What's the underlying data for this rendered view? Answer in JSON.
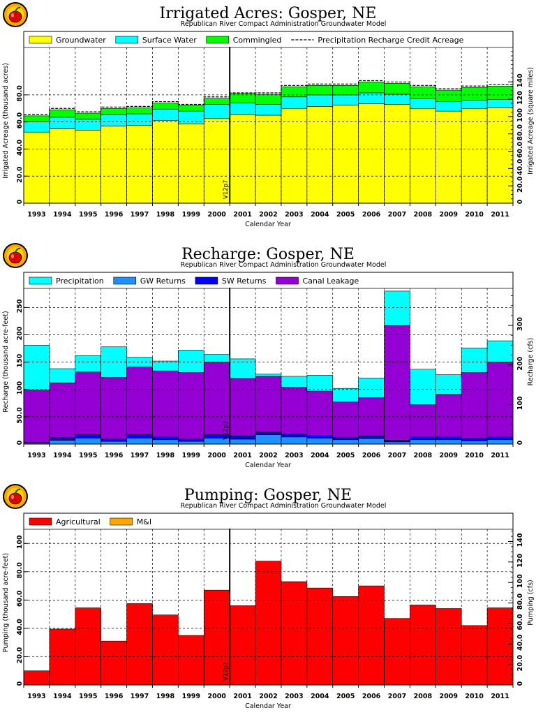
{
  "colors": {
    "groundwater": "#ffff00",
    "surface_water": "#00ffff",
    "commingled": "#00ff00",
    "precipitation": "#00ffff",
    "gw_returns": "#1e90ff",
    "sw_returns": "#0000ff",
    "canal_leakage": "#9400d3",
    "agricultural": "#ff0000",
    "mi": "#ffa500"
  },
  "chart_data": [
    {
      "type": "bar",
      "stacked": true,
      "title": "Irrigated  Acres:  Gosper,  NE",
      "subtitle": "Republican  River  Compact  Administration  Groundwater  Model",
      "xlabel": "Calendar  Year",
      "ylabel": "Irrigated  Acreage  (thousand  acres)",
      "ylabel_right": "Irrigated  Acreage  (square  miles)",
      "ylim": [
        0,
        115
      ],
      "yticks": [
        0,
        20.0,
        40.0,
        60.0,
        80.0
      ],
      "ytick_labels": [
        "0",
        "20.0",
        "40.0",
        "60.0",
        "80.0"
      ],
      "ylim_right": [
        0,
        179.7
      ],
      "yticks_right": [
        0,
        20.0,
        40.0,
        60.0,
        80.0,
        100,
        120,
        140
      ],
      "ytick_labels_right": [
        "0",
        "20.0",
        "40.0",
        "60.0",
        "80.0",
        "100",
        "120",
        "140"
      ],
      "grid": true,
      "legend_position": "top",
      "marker": {
        "label": "V12p7",
        "x": 2000.5
      },
      "categories": [
        "1993",
        "1994",
        "1995",
        "1996",
        "1997",
        "1998",
        "1999",
        "2000",
        "2001",
        "2002",
        "2003",
        "2004",
        "2005",
        "2006",
        "2007",
        "2008",
        "2009",
        "2010",
        "2011"
      ],
      "series": [
        {
          "name": "Groundwater",
          "color_key": "groundwater",
          "values": [
            52.5,
            55.0,
            54.0,
            57.0,
            57.5,
            61.0,
            58.5,
            62.5,
            65.5,
            65.0,
            70.0,
            71.5,
            72.5,
            73.5,
            73.0,
            70.0,
            68.0,
            70.0,
            70.5
          ]
        },
        {
          "name": "Surface  Water",
          "color_key": "surface_water",
          "values": [
            7.5,
            8.5,
            8.0,
            8.5,
            8.5,
            8.5,
            9.5,
            10.5,
            8.5,
            8.0,
            8.5,
            8.5,
            7.5,
            8.0,
            7.5,
            7.0,
            7.0,
            6.0,
            6.0
          ]
        },
        {
          "name": "Commingled",
          "color_key": "commingled",
          "values": [
            4.5,
            5.5,
            4.5,
            4.5,
            4.5,
            4.5,
            4.5,
            4.5,
            7.0,
            7.5,
            7.5,
            7.0,
            7.0,
            8.0,
            8.0,
            9.0,
            8.5,
            9.5,
            10.0
          ]
        }
      ],
      "line_series": [
        {
          "name": "Precipitation  Recharge  Credit  Acreage",
          "style": "dashed",
          "values": [
            65.5,
            70.0,
            67.5,
            71.0,
            71.5,
            75.0,
            73.0,
            78.5,
            81.5,
            81.5,
            87.0,
            88.0,
            88.0,
            90.5,
            89.5,
            87.0,
            84.5,
            86.5,
            87.5
          ]
        }
      ]
    },
    {
      "type": "bar",
      "stacked": true,
      "title": "Recharge:  Gosper,  NE",
      "subtitle": "Republican  River  Compact  Administration  Groundwater  Model",
      "xlabel": "Calendar  Year",
      "ylabel": "Recharge  (thousand  acre-feet)",
      "ylabel_right": "Recharge  (cfs)",
      "ylim": [
        0,
        285
      ],
      "yticks": [
        0,
        50.0,
        100,
        150,
        200,
        250
      ],
      "ytick_labels": [
        "0",
        "50.0",
        "100",
        "150",
        "200",
        "250"
      ],
      "ylim_right": [
        0,
        393.6
      ],
      "yticks_right": [
        0,
        100,
        200,
        300
      ],
      "ytick_labels_right": [
        "0",
        "100",
        "200",
        "300"
      ],
      "grid": true,
      "legend_position": "top",
      "marker": {
        "label": "V12p7",
        "x": 2000.5
      },
      "categories": [
        "1993",
        "1994",
        "1995",
        "1996",
        "1997",
        "1998",
        "1999",
        "2000",
        "2001",
        "2002",
        "2003",
        "2004",
        "2005",
        "2006",
        "2007",
        "2008",
        "2009",
        "2010",
        "2011"
      ],
      "series": [
        {
          "name": "GW  Returns",
          "color_key": "gw_returns",
          "values": [
            2,
            7,
            11,
            5,
            11,
            8,
            5,
            11,
            9,
            17,
            13,
            11,
            8,
            10,
            4,
            8,
            8,
            6,
            8
          ]
        },
        {
          "name": "SW  Returns",
          "color_key": "sw_returns",
          "values": [
            1,
            5,
            6,
            4,
            6,
            5,
            4,
            6,
            6,
            5,
            5,
            5,
            4,
            5,
            3,
            5,
            5,
            4,
            5
          ]
        },
        {
          "name": "Canal  Leakage",
          "color_key": "canal_leakage",
          "values": [
            96,
            100,
            115,
            113,
            124,
            121,
            122,
            133,
            105,
            102,
            86,
            81,
            65,
            70,
            210,
            59,
            78,
            121,
            137
          ]
        },
        {
          "name": "Precipitation",
          "color_key": "precipitation",
          "values": [
            82,
            26,
            30,
            56,
            18,
            18,
            41,
            14,
            36,
            4,
            20,
            29,
            25,
            36,
            63,
            65,
            36,
            45,
            39
          ]
        }
      ]
    },
    {
      "type": "bar",
      "stacked": true,
      "title": "Pumping:  Gosper,  NE",
      "subtitle": "Republican  River  Compact  Administration  Groundwater  Model",
      "xlabel": "Calendar  Year",
      "ylabel": "Pumping  (thousand  acre-feet)",
      "ylabel_right": "Pumping  (cfs)",
      "ylim": [
        0,
        110
      ],
      "yticks": [
        0,
        20.0,
        40.0,
        60.0,
        80.0,
        100
      ],
      "ytick_labels": [
        "0",
        "20.0",
        "40.0",
        "60.0",
        "80.0",
        "100"
      ],
      "ylim_right": [
        0,
        151.9
      ],
      "yticks_right": [
        0,
        20.0,
        40.0,
        60.0,
        80.0,
        100,
        120,
        140
      ],
      "ytick_labels_right": [
        "0",
        "20.0",
        "40.0",
        "60.0",
        "80.0",
        "100",
        "120",
        "140"
      ],
      "grid": true,
      "legend_position": "top",
      "marker": {
        "label": "V12p7",
        "x": 2000.5
      },
      "categories": [
        "1993",
        "1994",
        "1995",
        "1996",
        "1997",
        "1998",
        "1999",
        "2000",
        "2001",
        "2002",
        "2003",
        "2004",
        "2005",
        "2006",
        "2007",
        "2008",
        "2009",
        "2010",
        "2011"
      ],
      "series": [
        {
          "name": "Agricultural",
          "color_key": "agricultural",
          "values": [
            10,
            39.5,
            54.5,
            31,
            57.5,
            49.5,
            35,
            67,
            56,
            87.5,
            73,
            68.5,
            62.5,
            70,
            47,
            56.5,
            54,
            42,
            54.5
          ]
        },
        {
          "name": "M&I",
          "color_key": "mi",
          "values": [
            0,
            0,
            0,
            0,
            0,
            0,
            0,
            0,
            0,
            0,
            0,
            0,
            0,
            0,
            0,
            0,
            0,
            0,
            0
          ]
        }
      ]
    }
  ]
}
